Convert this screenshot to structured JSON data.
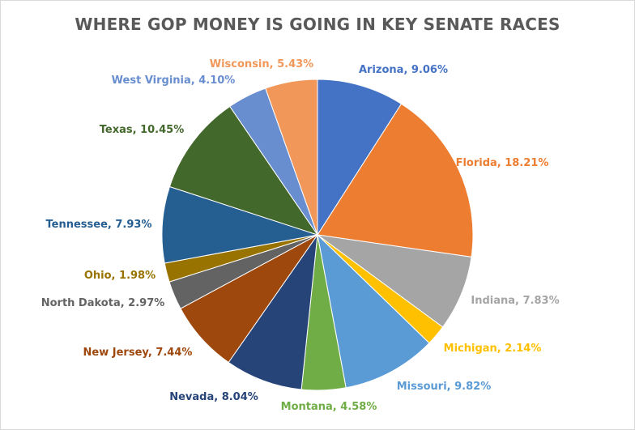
{
  "chart_data": {
    "type": "pie",
    "title": "WHERE GOP MONEY IS GOING IN KEY SENATE RACES",
    "slices": [
      {
        "name": "Arizona",
        "value": 9.06,
        "label": "Arizona, 9.06%",
        "color": "#4472C4"
      },
      {
        "name": "Florida",
        "value": 18.21,
        "label": "Florida, 18.21%",
        "color": "#ED7D31"
      },
      {
        "name": "Indiana",
        "value": 7.83,
        "label": "Indiana, 7.83%",
        "color": "#A5A5A5"
      },
      {
        "name": "Michigan",
        "value": 2.14,
        "label": "Michigan, 2.14%",
        "color": "#FFC000"
      },
      {
        "name": "Missouri",
        "value": 9.82,
        "label": "Missouri, 9.82%",
        "color": "#5B9BD5"
      },
      {
        "name": "Montana",
        "value": 4.58,
        "label": "Montana, 4.58%",
        "color": "#70AD47"
      },
      {
        "name": "Nevada",
        "value": 8.04,
        "label": "Nevada, 8.04%",
        "color": "#264478"
      },
      {
        "name": "New Jersey",
        "value": 7.44,
        "label": "New Jersey, 7.44%",
        "color": "#9E480E"
      },
      {
        "name": "North Dakota",
        "value": 2.97,
        "label": "North Dakota, 2.97%",
        "color": "#636363"
      },
      {
        "name": "Ohio",
        "value": 1.98,
        "label": "Ohio, 1.98%",
        "color": "#997300"
      },
      {
        "name": "Tennessee",
        "value": 7.93,
        "label": "Tennessee, 7.93%",
        "color": "#255E91"
      },
      {
        "name": "Texas",
        "value": 10.45,
        "label": "Texas, 10.45%",
        "color": "#43682B"
      },
      {
        "name": "West Virginia",
        "value": 4.1,
        "label": "West Virginia, 4.10%",
        "color": "#698ED0"
      },
      {
        "name": "Wisconsin",
        "value": 5.43,
        "label": "Wisconsin, 5.43%",
        "color": "#F1975A"
      }
    ]
  }
}
